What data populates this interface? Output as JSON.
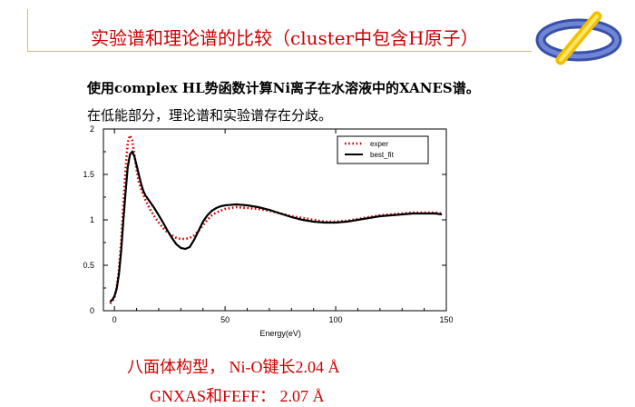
{
  "slide": {
    "title": "实验谱和理论谱的比较（cluster中包含H原子）",
    "line1": "使用complex HL势函数计算Ni离子在水溶液中的XANES谱。",
    "line2": "在低能部分，理论谱和实验谱存在分歧。",
    "note1": "八面体构型， Ni-O键长2.04 Å",
    "note2": "GNXAS和FEFF： 2.07 Å"
  },
  "colors": {
    "title": "#cc0000",
    "exper": "#cc0000",
    "best_fit": "#000000"
  },
  "chart_data": {
    "type": "line",
    "xlabel": "Energy(eV)",
    "ylabel": "",
    "xlim": [
      -5,
      150
    ],
    "ylim": [
      0,
      2
    ],
    "xticks": [
      0,
      50,
      100,
      150
    ],
    "yticks": [
      0,
      0.5,
      1,
      1.5,
      2
    ],
    "ytick_labels": [
      "0",
      "0.5",
      "1",
      "1.5",
      "2"
    ],
    "legend_position": "top-right",
    "series": [
      {
        "name": "exper",
        "style": "dotted",
        "x": [
          -2,
          -1,
          0,
          1,
          2,
          3,
          4,
          5,
          6,
          7,
          8,
          9,
          10,
          11,
          12,
          13,
          14,
          16,
          18,
          20,
          22,
          24,
          26,
          28,
          30,
          32,
          34,
          36,
          38,
          40,
          42,
          44,
          46,
          48,
          50,
          55,
          60,
          65,
          70,
          75,
          80,
          85,
          90,
          95,
          100,
          105,
          110,
          115,
          120,
          125,
          130,
          135,
          140,
          145,
          148
        ],
        "y": [
          0.08,
          0.1,
          0.15,
          0.25,
          0.45,
          0.75,
          1.15,
          1.55,
          1.85,
          1.93,
          1.88,
          1.72,
          1.55,
          1.42,
          1.34,
          1.28,
          1.22,
          1.12,
          1.04,
          0.97,
          0.91,
          0.86,
          0.83,
          0.8,
          0.79,
          0.79,
          0.8,
          0.83,
          0.88,
          0.94,
          1.0,
          1.05,
          1.08,
          1.1,
          1.12,
          1.14,
          1.13,
          1.12,
          1.1,
          1.07,
          1.04,
          1.02,
          1.0,
          0.98,
          0.98,
          0.99,
          1.01,
          1.03,
          1.05,
          1.06,
          1.07,
          1.08,
          1.08,
          1.08,
          1.07
        ]
      },
      {
        "name": "best_fit",
        "style": "solid",
        "x": [
          -2,
          -1,
          0,
          1,
          2,
          3,
          4,
          5,
          6,
          7,
          8,
          9,
          10,
          11,
          12,
          13,
          14,
          16,
          18,
          20,
          22,
          24,
          26,
          28,
          30,
          32,
          34,
          36,
          38,
          40,
          42,
          44,
          46,
          48,
          50,
          55,
          60,
          65,
          70,
          75,
          80,
          85,
          90,
          95,
          100,
          105,
          110,
          115,
          120,
          125,
          130,
          135,
          140,
          145,
          148
        ],
        "y": [
          0.1,
          0.12,
          0.16,
          0.24,
          0.4,
          0.65,
          0.98,
          1.3,
          1.58,
          1.72,
          1.75,
          1.7,
          1.6,
          1.5,
          1.4,
          1.32,
          1.27,
          1.2,
          1.13,
          1.05,
          0.97,
          0.88,
          0.8,
          0.73,
          0.69,
          0.68,
          0.7,
          0.78,
          0.88,
          0.98,
          1.05,
          1.1,
          1.13,
          1.15,
          1.16,
          1.17,
          1.16,
          1.14,
          1.11,
          1.07,
          1.03,
          1.0,
          0.98,
          0.97,
          0.97,
          0.98,
          1.0,
          1.02,
          1.04,
          1.05,
          1.06,
          1.07,
          1.07,
          1.07,
          1.06
        ]
      }
    ]
  }
}
